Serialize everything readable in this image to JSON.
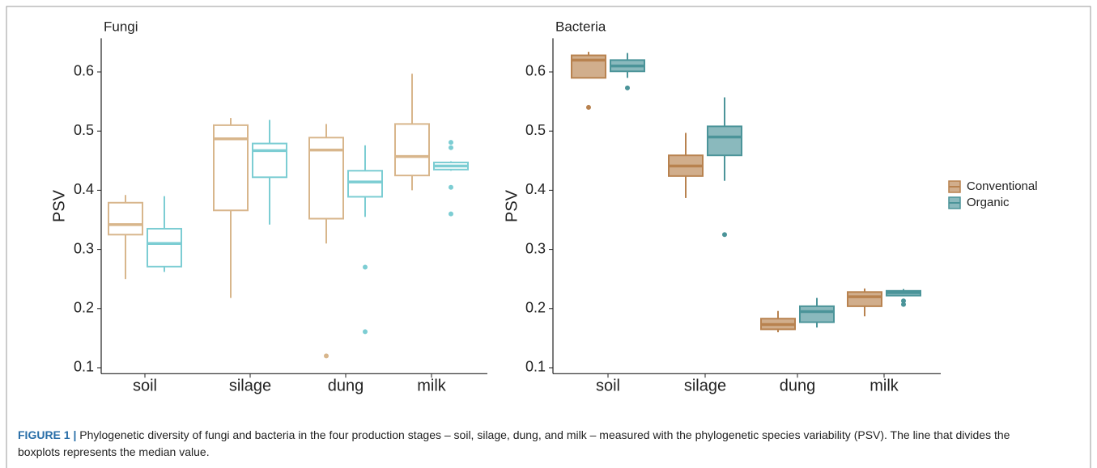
{
  "chart_data": [
    {
      "type": "box",
      "title": "Fungi",
      "y_label": "PSV",
      "filled": false,
      "categories": [
        "soil",
        "silage",
        "dung",
        "milk"
      ],
      "ylim": [
        0.09,
        0.65
      ],
      "yticks": [
        0.1,
        0.2,
        0.3,
        0.4,
        0.5,
        0.6
      ],
      "series": [
        {
          "color": "#d8b68c",
          "values": [
            {
              "low": 0.25,
              "q1": 0.325,
              "median": 0.342,
              "q3": 0.379,
              "high": 0.392,
              "outliers": []
            },
            {
              "low": 0.218,
              "q1": 0.366,
              "median": 0.487,
              "q3": 0.51,
              "high": 0.522,
              "outliers": []
            },
            {
              "low": 0.31,
              "q1": 0.352,
              "median": 0.468,
              "q3": 0.489,
              "high": 0.512,
              "outliers": [
                0.12
              ]
            },
            {
              "low": 0.4,
              "q1": 0.425,
              "median": 0.457,
              "q3": 0.512,
              "high": 0.597,
              "outliers": []
            }
          ]
        },
        {
          "color": "#7ccdd3",
          "values": [
            {
              "low": 0.262,
              "q1": 0.271,
              "median": 0.31,
              "q3": 0.335,
              "high": 0.39,
              "outliers": []
            },
            {
              "low": 0.342,
              "q1": 0.422,
              "median": 0.467,
              "q3": 0.479,
              "high": 0.519,
              "outliers": []
            },
            {
              "low": 0.355,
              "q1": 0.389,
              "median": 0.414,
              "q3": 0.433,
              "high": 0.476,
              "outliers": [
                0.27,
                0.161
              ]
            },
            {
              "low": 0.433,
              "q1": 0.435,
              "median": 0.441,
              "q3": 0.447,
              "high": 0.449,
              "outliers": [
                0.481,
                0.472,
                0.405,
                0.36
              ]
            }
          ]
        }
      ]
    },
    {
      "type": "box",
      "title": "Bacteria",
      "y_label": "PSV",
      "filled": true,
      "categories": [
        "soil",
        "silage",
        "dung",
        "milk"
      ],
      "ylim": [
        0.09,
        0.65
      ],
      "yticks": [
        0.1,
        0.2,
        0.3,
        0.4,
        0.5,
        0.6
      ],
      "series": [
        {
          "name": "Conventional",
          "color": "#b8824f",
          "values": [
            {
              "low": 0.59,
              "q1": 0.59,
              "median": 0.62,
              "q3": 0.628,
              "high": 0.634,
              "outliers": [
                0.54
              ]
            },
            {
              "low": 0.387,
              "q1": 0.424,
              "median": 0.441,
              "q3": 0.459,
              "high": 0.497,
              "outliers": []
            },
            {
              "low": 0.16,
              "q1": 0.165,
              "median": 0.173,
              "q3": 0.183,
              "high": 0.196,
              "outliers": []
            },
            {
              "low": 0.187,
              "q1": 0.204,
              "median": 0.22,
              "q3": 0.228,
              "high": 0.234,
              "outliers": []
            }
          ]
        },
        {
          "name": "Organic",
          "color": "#4b9499",
          "values": [
            {
              "low": 0.59,
              "q1": 0.601,
              "median": 0.61,
              "q3": 0.62,
              "high": 0.632,
              "outliers": [
                0.573
              ]
            },
            {
              "low": 0.416,
              "q1": 0.459,
              "median": 0.49,
              "q3": 0.508,
              "high": 0.557,
              "outliers": [
                0.325
              ]
            },
            {
              "low": 0.168,
              "q1": 0.177,
              "median": 0.195,
              "q3": 0.204,
              "high": 0.218,
              "outliers": []
            },
            {
              "low": 0.222,
              "q1": 0.222,
              "median": 0.227,
              "q3": 0.23,
              "high": 0.233,
              "outliers": [
                0.213,
                0.207
              ]
            }
          ]
        }
      ]
    }
  ],
  "caption": {
    "label": "FIGURE 1 |",
    "text": "Phylogenetic diversity of fungi and bacteria in the four production stages – soil, silage, dung, and milk – measured with the phylogenetic species variability (PSV). The line that divides the boxplots represents the median value."
  }
}
